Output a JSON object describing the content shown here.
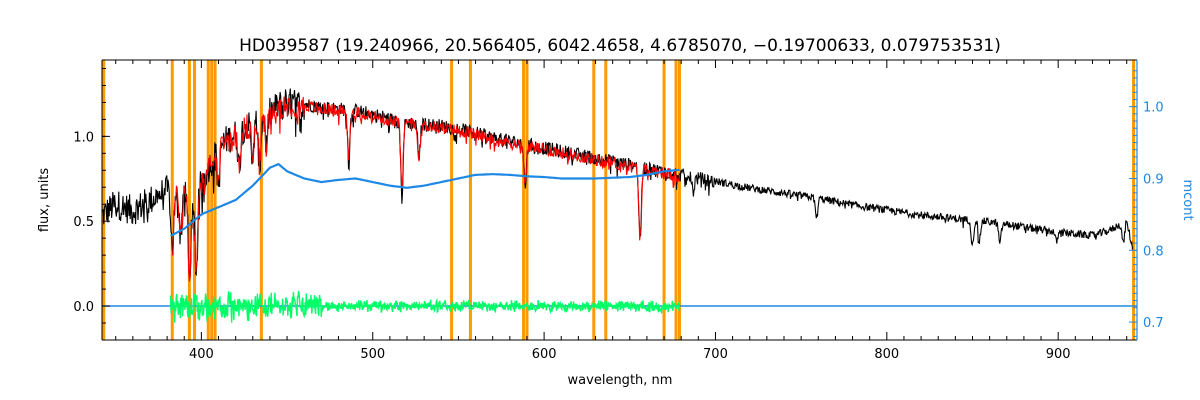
{
  "chart_data": {
    "type": "line",
    "title": "HD039587   (19.240966, 20.566405, 6042.4658, 4.6785070, −0.19700633, 0.079753531)",
    "xlabel": "wavelength, nm",
    "ylabel": "flux, units",
    "y2label": "mcont",
    "xlim": [
      342,
      946
    ],
    "ylim": [
      -0.2,
      1.45
    ],
    "y2lim": [
      0.675,
      1.065
    ],
    "x_ticks": [
      400,
      500,
      600,
      700,
      800,
      900
    ],
    "y_ticks": [
      0.0,
      0.5,
      1.0
    ],
    "y2_ticks": [
      0.7,
      0.8,
      0.9,
      1.0
    ],
    "x_tick_labels": [
      "400",
      "500",
      "600",
      "700",
      "800",
      "900"
    ],
    "y_tick_labels": [
      "0.0",
      "0.5",
      "1.0"
    ],
    "y2_tick_labels": [
      "0.7",
      "0.8",
      "0.9",
      "1.0"
    ],
    "grid": false,
    "colors": {
      "observed": "#000000",
      "model": "#ff0000",
      "residual": "#00ff66",
      "mcont": "#1e88e5",
      "mask": "#ff9900",
      "right_axis": "#1e88e5"
    },
    "mask_lines": [
      343,
      383,
      393,
      396,
      404,
      406,
      408,
      435,
      546,
      557,
      588,
      590,
      629,
      636,
      670,
      677,
      679,
      944
    ],
    "series": [
      {
        "role": "observed",
        "x": [
          342,
          350,
          360,
          370,
          380,
          385,
          390,
          395,
          400,
          405,
          410,
          415,
          420,
          425,
          430,
          435,
          440,
          445,
          450,
          455,
          460,
          470,
          480,
          490,
          500,
          510,
          520,
          530,
          540,
          550,
          560,
          570,
          580,
          590,
          600,
          610,
          620,
          630,
          640,
          650,
          660,
          670,
          680,
          700,
          720,
          740,
          760,
          780,
          800,
          820,
          840,
          860,
          880,
          900,
          910,
          920,
          930,
          935,
          940,
          944
        ],
        "y": [
          0.55,
          0.62,
          0.58,
          0.64,
          0.7,
          0.62,
          0.72,
          0.55,
          0.75,
          0.85,
          0.95,
          1.0,
          1.03,
          1.07,
          1.1,
          1.12,
          1.16,
          1.2,
          1.22,
          1.21,
          1.2,
          1.18,
          1.17,
          1.16,
          1.14,
          1.11,
          1.09,
          1.08,
          1.07,
          1.05,
          1.03,
          1.0,
          0.98,
          0.96,
          0.94,
          0.92,
          0.9,
          0.88,
          0.86,
          0.84,
          0.82,
          0.8,
          0.78,
          0.74,
          0.7,
          0.67,
          0.64,
          0.6,
          0.57,
          0.54,
          0.52,
          0.5,
          0.47,
          0.44,
          0.43,
          0.42,
          0.45,
          0.48,
          0.5,
          0.32
        ]
      },
      {
        "role": "model",
        "x": [
          383,
          390,
          395,
          400,
          405,
          410,
          415,
          420,
          425,
          430,
          435,
          440,
          445,
          450,
          455,
          460,
          470,
          480,
          490,
          500,
          510,
          520,
          530,
          540,
          550,
          560,
          570,
          580,
          590,
          600,
          610,
          620,
          630,
          640,
          650,
          660,
          670,
          679
        ],
        "y": [
          0.62,
          0.7,
          0.52,
          0.74,
          0.84,
          0.94,
          0.99,
          1.02,
          1.06,
          1.09,
          1.11,
          1.15,
          1.19,
          1.21,
          1.2,
          1.19,
          1.17,
          1.16,
          1.15,
          1.13,
          1.1,
          1.08,
          1.07,
          1.06,
          1.04,
          1.02,
          0.99,
          0.97,
          0.95,
          0.93,
          0.91,
          0.89,
          0.87,
          0.85,
          0.83,
          0.81,
          0.79,
          0.77
        ]
      },
      {
        "role": "mcont",
        "axis": "right",
        "x": [
          382,
          390,
          400,
          410,
          420,
          430,
          440,
          445,
          450,
          460,
          470,
          480,
          490,
          500,
          510,
          520,
          530,
          540,
          550,
          560,
          570,
          580,
          590,
          600,
          610,
          620,
          630,
          640,
          650,
          660,
          670,
          679
        ],
        "y": [
          0.82,
          0.83,
          0.85,
          0.86,
          0.87,
          0.89,
          0.915,
          0.92,
          0.91,
          0.9,
          0.895,
          0.898,
          0.9,
          0.895,
          0.89,
          0.887,
          0.89,
          0.895,
          0.9,
          0.905,
          0.906,
          0.905,
          0.903,
          0.902,
          0.9,
          0.9,
          0.9,
          0.901,
          0.902,
          0.905,
          0.91,
          0.912
        ]
      },
      {
        "role": "residual",
        "x": [
          382,
          679
        ],
        "y": [
          0.0,
          0.0
        ],
        "scatter_amplitude_blue": 0.1,
        "scatter_amplitude_red": 0.04
      },
      {
        "role": "baseline",
        "x": [
          342,
          946
        ],
        "y": [
          0.0,
          0.0
        ]
      }
    ],
    "absorption_lines": [
      {
        "x": 383,
        "depth": 0.3
      },
      {
        "x": 388,
        "depth": 0.25
      },
      {
        "x": 393,
        "depth": 0.45
      },
      {
        "x": 397,
        "depth": 0.4
      },
      {
        "x": 410,
        "depth": 0.22
      },
      {
        "x": 422,
        "depth": 0.2
      },
      {
        "x": 430,
        "depth": 0.25
      },
      {
        "x": 434,
        "depth": 0.28
      },
      {
        "x": 438,
        "depth": 0.18
      },
      {
        "x": 486,
        "depth": 0.3
      },
      {
        "x": 517,
        "depth": 0.45
      },
      {
        "x": 527,
        "depth": 0.2
      },
      {
        "x": 589,
        "depth": 0.25
      },
      {
        "x": 656,
        "depth": 0.45
      },
      {
        "x": 687,
        "depth": 0.08
      },
      {
        "x": 759,
        "depth": 0.12
      },
      {
        "x": 850,
        "depth": 0.15
      },
      {
        "x": 854,
        "depth": 0.12
      },
      {
        "x": 866,
        "depth": 0.12
      },
      {
        "x": 899,
        "depth": 0.06
      },
      {
        "x": 938,
        "depth": 0.12
      }
    ]
  }
}
